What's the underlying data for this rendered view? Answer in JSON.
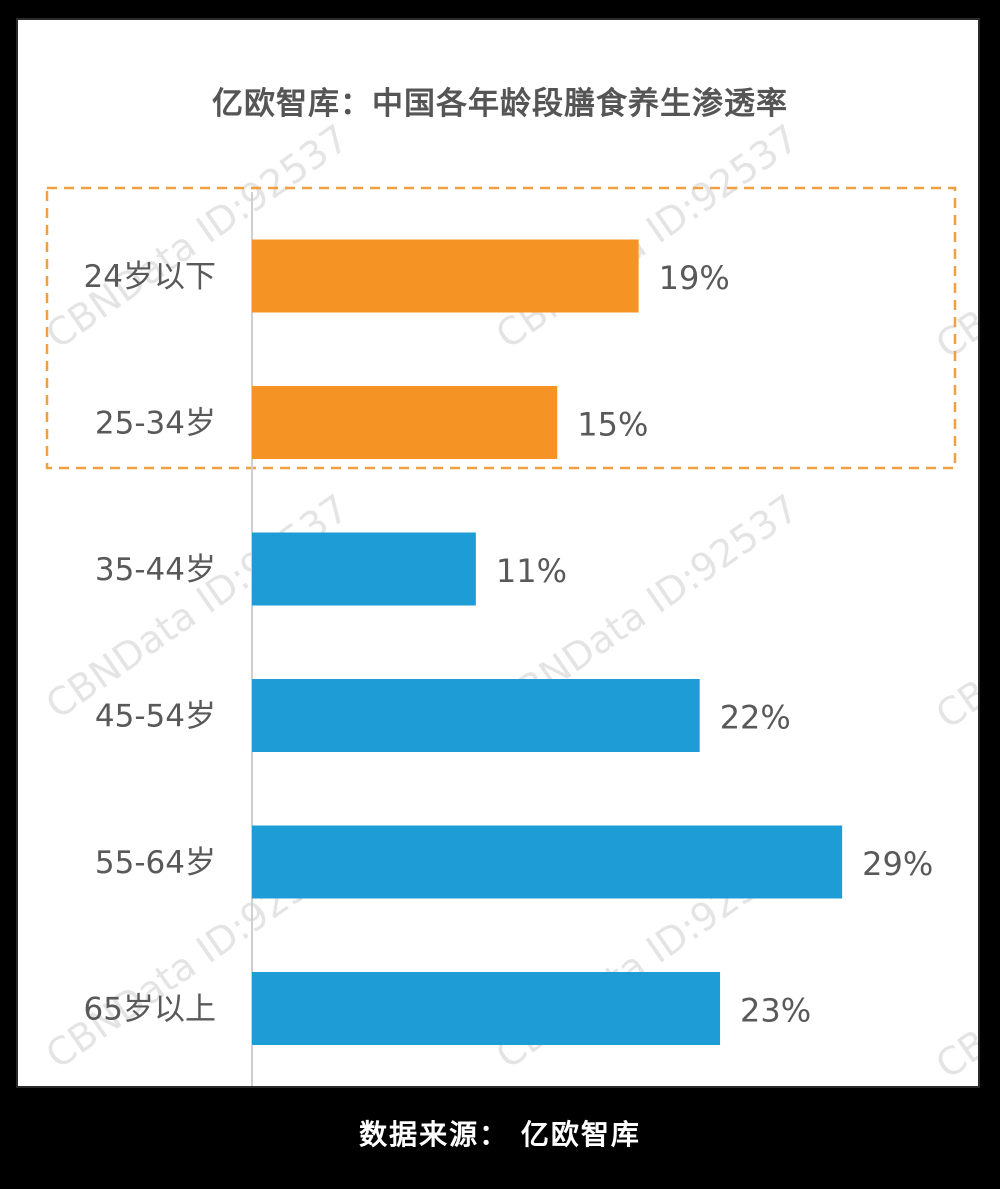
{
  "chart_data": {
    "type": "bar",
    "orientation": "horizontal",
    "title": "亿欧智库：中国各年龄段膳食养生渗透率",
    "categories": [
      "24岁以下",
      "25-34岁",
      "35-44岁",
      "45-54岁",
      "55-64岁",
      "65岁以上"
    ],
    "values": [
      19,
      15,
      11,
      22,
      29,
      23
    ],
    "value_labels": [
      "19%",
      "15%",
      "11%",
      "22%",
      "29%",
      "23%"
    ],
    "unit": "%",
    "xlim": [
      0,
      30
    ],
    "grid": false,
    "highlight": {
      "categories": [
        "24岁以下",
        "25-34岁"
      ],
      "style": "dashed-box",
      "color": "#f0a040"
    },
    "colors": {
      "highlight": "#f59425",
      "default": "#1e9cd6",
      "axis": "#cfcfcf"
    }
  },
  "watermark": "CBNData ID:92537",
  "footer": {
    "source": "数据来源： 亿欧智库"
  }
}
